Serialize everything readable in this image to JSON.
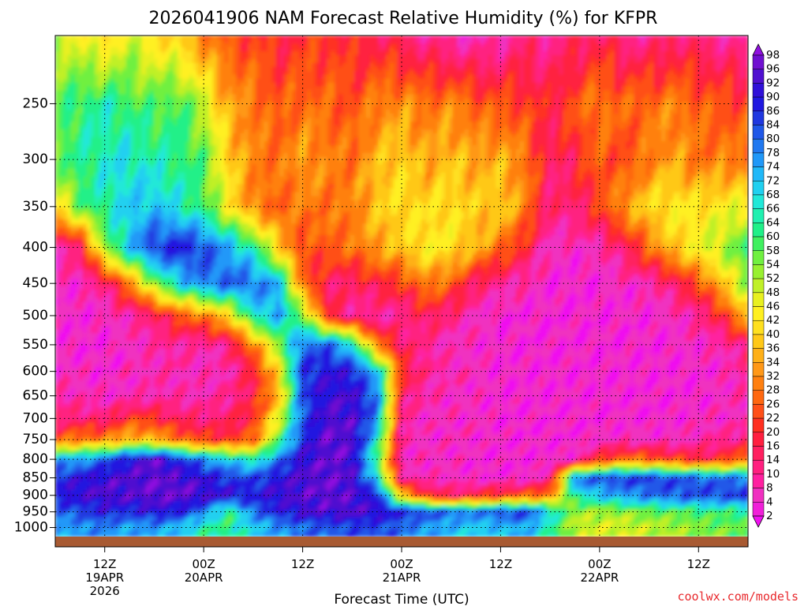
{
  "chart_data": {
    "type": "heatmap",
    "title": "2026041906 NAM Forecast Relative Humidity (%) for KFPR",
    "xlabel": "Forecast Time (UTC)",
    "ylabel": "",
    "watermark": "coolwx.com/models",
    "x_ticks": [
      {
        "hour": 6,
        "lines": [
          "12Z",
          "19APR",
          "2026"
        ]
      },
      {
        "hour": 18,
        "lines": [
          "00Z",
          "20APR"
        ]
      },
      {
        "hour": 30,
        "lines": [
          "12Z"
        ]
      },
      {
        "hour": 42,
        "lines": [
          "00Z",
          "21APR"
        ]
      },
      {
        "hour": 54,
        "lines": [
          "12Z"
        ]
      },
      {
        "hour": 66,
        "lines": [
          "00Z",
          "22APR"
        ]
      },
      {
        "hour": 78,
        "lines": [
          "12Z"
        ]
      }
    ],
    "x_range_hours_from_init": [
      0,
      84
    ],
    "y_axis": "pressure (log scale)",
    "y_ticks": [
      250,
      300,
      350,
      400,
      450,
      500,
      550,
      600,
      650,
      700,
      750,
      800,
      850,
      900,
      950,
      1000
    ],
    "y_range": [
      200,
      1030
    ],
    "colorbar_levels": [
      2,
      4,
      8,
      10,
      14,
      16,
      20,
      22,
      26,
      28,
      32,
      34,
      36,
      40,
      42,
      46,
      48,
      52,
      54,
      58,
      60,
      64,
      66,
      68,
      72,
      74,
      78,
      80,
      84,
      86,
      90,
      92,
      96,
      98
    ],
    "colorbar_colors": [
      "#f010f0",
      "#f020d8",
      "#f030c0",
      "#ff20a0",
      "#ff2080",
      "#ff2060",
      "#ff2040",
      "#ff3020",
      "#ff5018",
      "#ff6810",
      "#ff8010",
      "#ff9818",
      "#ffb018",
      "#ffc818",
      "#ffe020",
      "#fff020",
      "#e8f020",
      "#c0f028",
      "#98f030",
      "#70f040",
      "#40f060",
      "#20f088",
      "#20f0b0",
      "#20e8d8",
      "#20d0f0",
      "#20b8f8",
      "#2098f8",
      "#2078f0",
      "#2058e8",
      "#2038e0",
      "#2018e0",
      "#3010d8",
      "#5010d0",
      "#7010d0",
      "#9010e0"
    ],
    "grid": "dotted",
    "colorbar_placement": "right",
    "surface_band_color": "#a85a32",
    "rh_field": {
      "hours": [
        0,
        3,
        6,
        9,
        12,
        15,
        18,
        21,
        24,
        27,
        30,
        33,
        36,
        39,
        42,
        45,
        48,
        51,
        54,
        57,
        60,
        63,
        66,
        69,
        72,
        75,
        78,
        81,
        84
      ],
      "levels": [
        200,
        250,
        300,
        350,
        400,
        450,
        500,
        550,
        600,
        650,
        700,
        750,
        800,
        850,
        900,
        950,
        1000
      ],
      "values": [
        [
          50,
          45,
          40,
          48,
          42,
          38,
          30,
          24,
          22,
          18,
          20,
          22,
          18,
          16,
          14,
          10,
          8,
          6,
          8,
          12,
          10,
          14,
          16,
          12,
          10,
          14,
          12,
          10,
          8
        ],
        [
          58,
          62,
          64,
          60,
          58,
          60,
          50,
          34,
          30,
          24,
          28,
          26,
          24,
          30,
          32,
          28,
          30,
          26,
          24,
          22,
          18,
          24,
          30,
          26,
          28,
          30,
          26,
          24,
          22
        ],
        [
          56,
          62,
          66,
          68,
          64,
          62,
          58,
          40,
          30,
          28,
          34,
          30,
          28,
          36,
          40,
          34,
          38,
          34,
          36,
          30,
          14,
          18,
          26,
          22,
          30,
          34,
          28,
          30,
          28
        ],
        [
          40,
          58,
          64,
          70,
          72,
          66,
          60,
          44,
          30,
          26,
          30,
          28,
          30,
          38,
          42,
          40,
          42,
          38,
          40,
          30,
          12,
          14,
          22,
          34,
          40,
          44,
          42,
          44,
          46
        ],
        [
          8,
          14,
          54,
          72,
          86,
          88,
          84,
          74,
          64,
          40,
          22,
          26,
          28,
          34,
          38,
          44,
          42,
          36,
          28,
          18,
          6,
          6,
          8,
          14,
          28,
          38,
          46,
          52,
          60
        ],
        [
          6,
          6,
          12,
          30,
          54,
          70,
          78,
          82,
          80,
          74,
          28,
          14,
          14,
          18,
          22,
          30,
          26,
          14,
          10,
          8,
          4,
          4,
          4,
          6,
          8,
          14,
          24,
          38,
          54
        ],
        [
          4,
          4,
          6,
          8,
          14,
          24,
          30,
          40,
          66,
          74,
          56,
          20,
          10,
          8,
          10,
          16,
          12,
          6,
          4,
          4,
          4,
          4,
          4,
          4,
          4,
          6,
          10,
          20,
          40
        ],
        [
          6,
          4,
          4,
          6,
          8,
          10,
          8,
          12,
          30,
          54,
          80,
          82,
          68,
          30,
          14,
          10,
          6,
          6,
          4,
          4,
          4,
          4,
          4,
          4,
          4,
          4,
          6,
          8,
          14
        ],
        [
          6,
          6,
          4,
          6,
          8,
          8,
          6,
          8,
          18,
          40,
          86,
          90,
          88,
          72,
          22,
          10,
          8,
          6,
          4,
          4,
          4,
          4,
          4,
          4,
          4,
          4,
          4,
          6,
          10
        ],
        [
          8,
          8,
          6,
          6,
          8,
          8,
          8,
          10,
          18,
          34,
          84,
          92,
          92,
          80,
          14,
          8,
          6,
          6,
          4,
          4,
          4,
          4,
          4,
          4,
          4,
          4,
          4,
          6,
          8
        ],
        [
          12,
          14,
          12,
          22,
          20,
          14,
          12,
          14,
          20,
          46,
          82,
          94,
          94,
          78,
          10,
          6,
          6,
          6,
          4,
          4,
          4,
          4,
          4,
          4,
          4,
          4,
          6,
          6,
          8
        ],
        [
          24,
          30,
          30,
          38,
          36,
          28,
          22,
          20,
          26,
          58,
          86,
          96,
          94,
          68,
          8,
          6,
          6,
          6,
          4,
          4,
          4,
          4,
          6,
          6,
          6,
          6,
          8,
          10,
          12
        ],
        [
          76,
          74,
          82,
          90,
          96,
          86,
          78,
          70,
          64,
          78,
          92,
          96,
          94,
          60,
          6,
          6,
          6,
          4,
          4,
          4,
          4,
          6,
          20,
          28,
          26,
          22,
          18,
          20,
          30
        ],
        [
          86,
          90,
          92,
          94,
          96,
          94,
          90,
          86,
          84,
          90,
          94,
          96,
          94,
          68,
          10,
          6,
          6,
          4,
          4,
          4,
          10,
          80,
          84,
          86,
          86,
          84,
          82,
          80,
          80
        ],
        [
          90,
          92,
          94,
          94,
          96,
          96,
          94,
          90,
          88,
          92,
          94,
          96,
          94,
          88,
          40,
          20,
          14,
          18,
          22,
          26,
          30,
          64,
          72,
          76,
          80,
          82,
          84,
          84,
          86
        ],
        [
          80,
          84,
          88,
          86,
          90,
          88,
          78,
          60,
          80,
          88,
          92,
          94,
          94,
          92,
          88,
          84,
          82,
          80,
          84,
          86,
          70,
          52,
          52,
          54,
          56,
          58,
          60,
          60,
          62
        ],
        [
          74,
          76,
          78,
          74,
          76,
          72,
          64,
          62,
          70,
          76,
          80,
          82,
          84,
          84,
          80,
          76,
          72,
          70,
          72,
          74,
          64,
          50,
          48,
          48,
          50,
          52,
          54,
          56,
          58
        ]
      ]
    }
  }
}
